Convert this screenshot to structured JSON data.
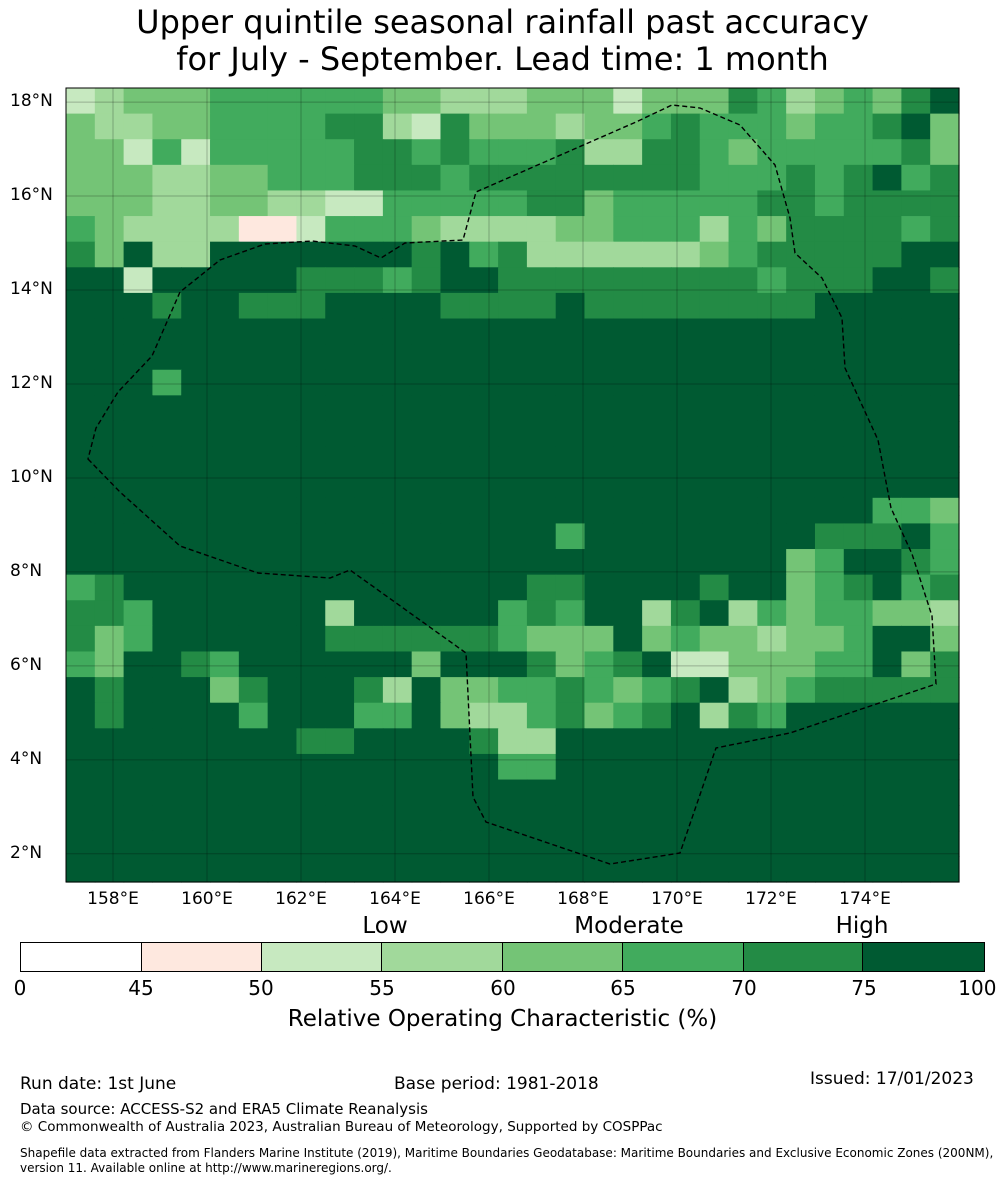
{
  "title": {
    "line1": "Upper quintile seasonal rainfall past accuracy",
    "line2": "for July - September. Lead time: 1 month"
  },
  "map": {
    "lat_labels": [
      "18°N",
      "16°N",
      "14°N",
      "12°N",
      "10°N",
      "8°N",
      "6°N",
      "4°N",
      "2°N"
    ],
    "lon_labels": [
      "158°E",
      "160°E",
      "162°E",
      "164°E",
      "166°E",
      "168°E",
      "170°E",
      "172°E",
      "174°E"
    ],
    "lat_values": [
      18,
      16,
      14,
      12,
      10,
      8,
      6,
      4,
      2
    ],
    "lon_values": [
      158,
      160,
      162,
      164,
      166,
      168,
      170,
      172,
      174
    ],
    "extent": {
      "lon_min": 157,
      "lon_max": 176,
      "lat_min": 1.4,
      "lat_max": 18.3
    },
    "grid_cell_deg": 0.84,
    "boundary_line": "dashed",
    "colors": {
      "lt45": "#ffffff",
      "45to50": "#fee8df",
      "50to55": "#c7e9c0",
      "55to60": "#a1d99b",
      "60to65": "#74c476",
      "65to70": "#41ab5d",
      "70to75": "#238b45",
      "ge75": "#005a32"
    }
  },
  "legend": {
    "categories": [
      "Low",
      "Moderate",
      "High"
    ],
    "ticks": [
      "0",
      "45",
      "50",
      "55",
      "60",
      "65",
      "70",
      "75",
      "100"
    ],
    "segment_colors": [
      "#ffffff",
      "#fee8df",
      "#c7e9c0",
      "#a1d99b",
      "#74c476",
      "#41ab5d",
      "#238b45",
      "#005a32"
    ],
    "label": "Relative Operating Characteristic (%)"
  },
  "footer": {
    "run_date": "Run date: 1st June",
    "base_period": "Base period: 1981-2018",
    "issued": "Issued: 17/01/2023",
    "data_source": "Data source: ACCESS-S2 and ERA5 Climate Reanalysis",
    "copyright": "© Commonwealth of Australia 2023, Australian Bureau of Meteorology, Supported by COSPPac",
    "shapefile": "Shapefile data extracted from Flanders Marine Institute (2019), Maritime Boundaries Geodatabase: Maritime Boundaries and Exclusive Economic Zones (200NM), version 11. Available online at http://www.marineregions.org/."
  }
}
